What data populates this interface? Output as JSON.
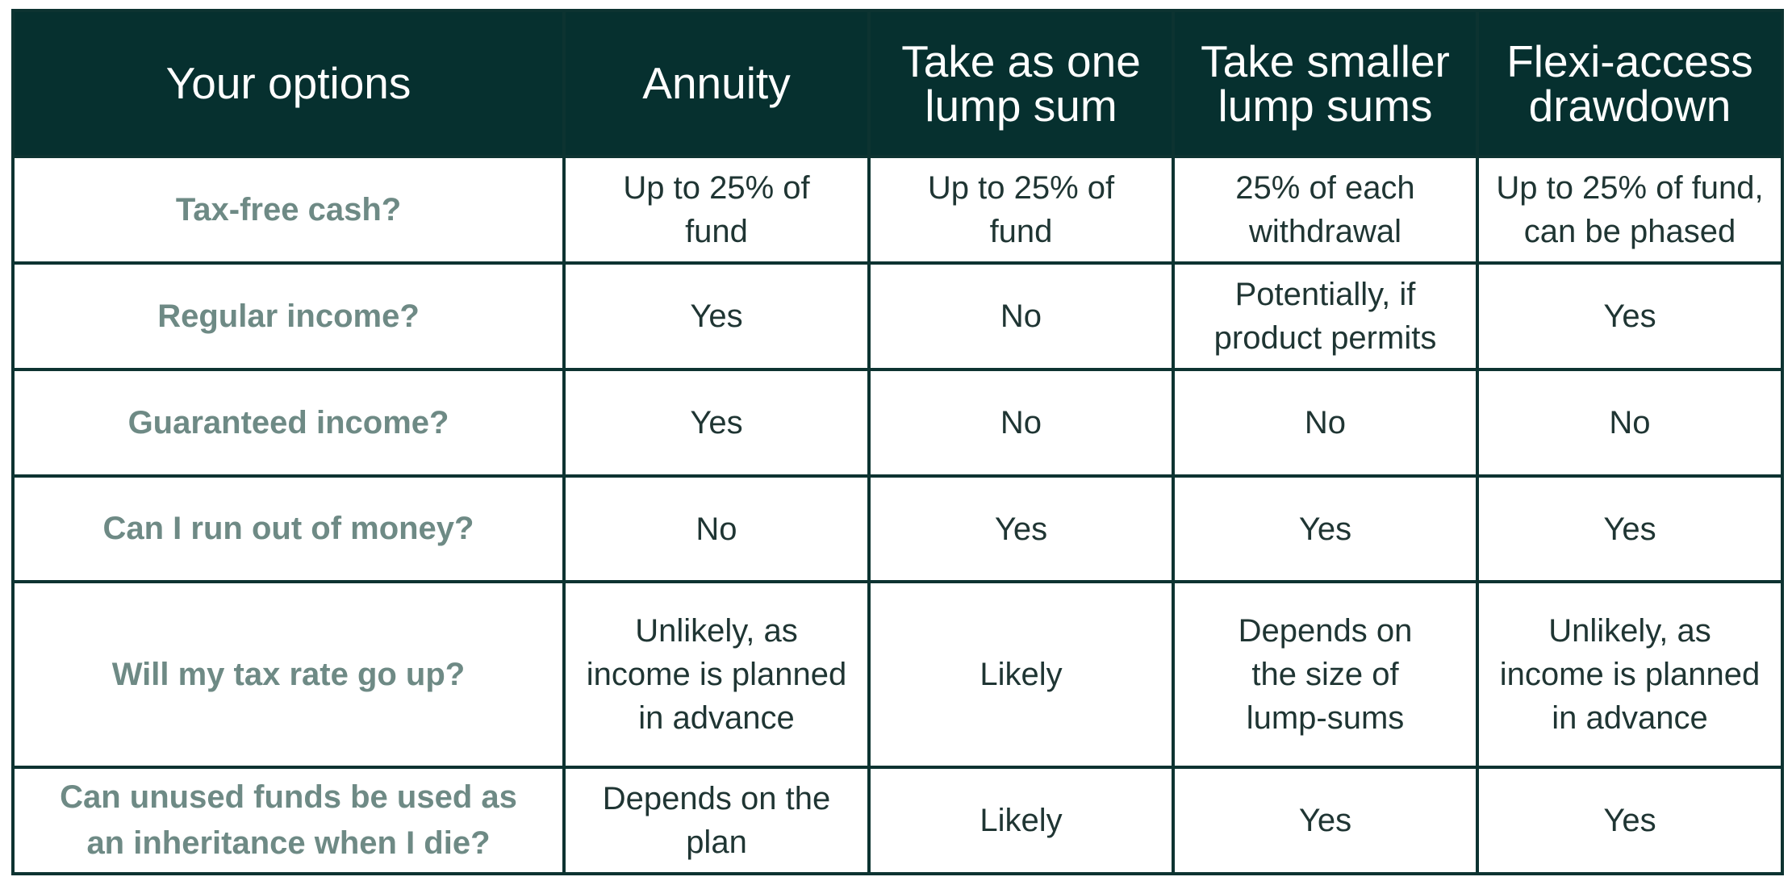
{
  "table": {
    "header": [
      [
        "Your options"
      ],
      [
        "Annuity"
      ],
      [
        "Take as one",
        "lump sum"
      ],
      [
        "Take smaller",
        "lump sums"
      ],
      [
        "Flexi-access",
        "drawdown"
      ]
    ],
    "rows": [
      {
        "label": [
          "Tax-free cash?"
        ],
        "cells": [
          [
            "Up to 25% of",
            "fund"
          ],
          [
            "Up to 25% of",
            "fund"
          ],
          [
            "25% of each",
            "withdrawal"
          ],
          [
            "Up to 25% of fund,",
            "can be phased"
          ]
        ]
      },
      {
        "label": [
          "Regular income?"
        ],
        "cells": [
          [
            "Yes"
          ],
          [
            "No"
          ],
          [
            "Potentially, if",
            "product permits"
          ],
          [
            "Yes"
          ]
        ]
      },
      {
        "label": [
          "Guaranteed income?"
        ],
        "cells": [
          [
            "Yes"
          ],
          [
            "No"
          ],
          [
            "No"
          ],
          [
            "No"
          ]
        ]
      },
      {
        "label": [
          "Can I run out of money?"
        ],
        "cells": [
          [
            "No"
          ],
          [
            "Yes"
          ],
          [
            "Yes"
          ],
          [
            "Yes"
          ]
        ]
      },
      {
        "label": [
          "Will my tax rate go up?"
        ],
        "cells": [
          [
            "Unlikely, as",
            "income is planned",
            "in advance"
          ],
          [
            "Likely"
          ],
          [
            "Depends on",
            "the size of",
            "lump-sums"
          ],
          [
            "Unlikely, as",
            "income is planned",
            "in advance"
          ]
        ]
      },
      {
        "label": [
          "Can unused funds be used as",
          "an inheritance when I die?"
        ],
        "cells": [
          [
            "Depends on the",
            "plan"
          ],
          [
            "Likely"
          ],
          [
            "Yes"
          ],
          [
            "Yes"
          ]
        ]
      }
    ]
  }
}
